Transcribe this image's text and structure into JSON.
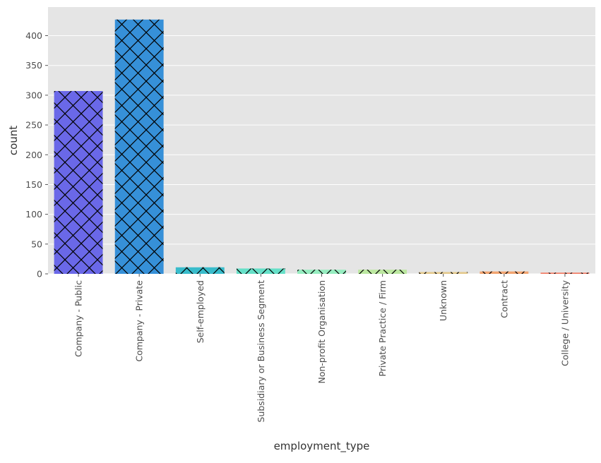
{
  "chart_data": {
    "type": "bar",
    "title": "",
    "xlabel": "employment_type",
    "ylabel": "count",
    "categories": [
      "Company - Public",
      "Company - Private",
      "Self-employed",
      "Subsidiary or Business Segment",
      "Non-profit Organisation",
      "Private Practice / Firm",
      "Unknown",
      "Contract",
      "College / University"
    ],
    "values": [
      307,
      427,
      11,
      9,
      7,
      7,
      3,
      4,
      2
    ],
    "colors": [
      "#6a68e8",
      "#3690d8",
      "#39bccb",
      "#66e0c8",
      "#96edc0",
      "#bce8a0",
      "#e4c88a",
      "#f2a470",
      "#f27c64"
    ],
    "hatch": "cross-diagonal",
    "yticks": [
      0,
      50,
      100,
      150,
      200,
      250,
      300,
      350,
      400
    ],
    "ylim": [
      0,
      448
    ],
    "grid": true,
    "legend": "none",
    "style": {
      "plot_background": "#e5e5e5",
      "grid_color": "#ffffff",
      "hatch_color": "#000000"
    }
  }
}
